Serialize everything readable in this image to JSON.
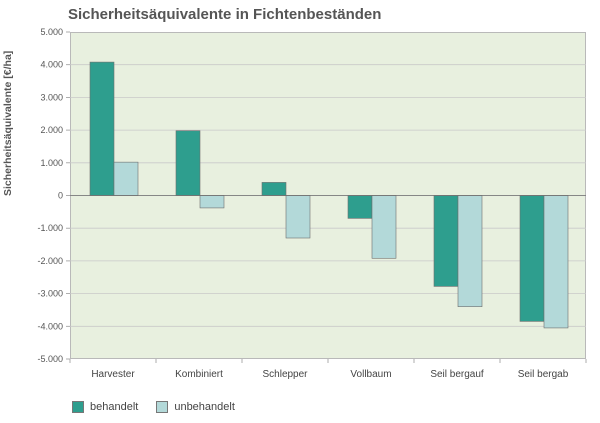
{
  "title": "Sicherheitsäquivalente in Fichtenbeständen",
  "chart_data": {
    "type": "bar",
    "title": "Sicherheitsäquivalente in Fichtenbeständen",
    "xlabel": "",
    "ylabel": "Sicherheitsäquivalente [€/ha]",
    "ylim": [
      -5000,
      5000
    ],
    "yticks": [
      "5.000",
      "4.000",
      "3.000",
      "2.000",
      "1.000",
      "0",
      "-1.000",
      "-2.000",
      "-3.000",
      "-4.000",
      "-5.000"
    ],
    "categories": [
      "Harvester",
      "Kombiniert",
      "Schlepper",
      "Vollbaum",
      "Seil bergauf",
      "Seil bergab"
    ],
    "series": [
      {
        "name": "behandelt",
        "color": "#2e9e8e",
        "values": [
          4080,
          1980,
          400,
          -700,
          -2780,
          -3850
        ]
      },
      {
        "name": "unbehandelt",
        "color": "#b3d9d9",
        "values": [
          1020,
          -380,
          -1300,
          -1920,
          -3400,
          -4050
        ]
      }
    ],
    "grid": true,
    "legend_position": "bottom-left"
  }
}
